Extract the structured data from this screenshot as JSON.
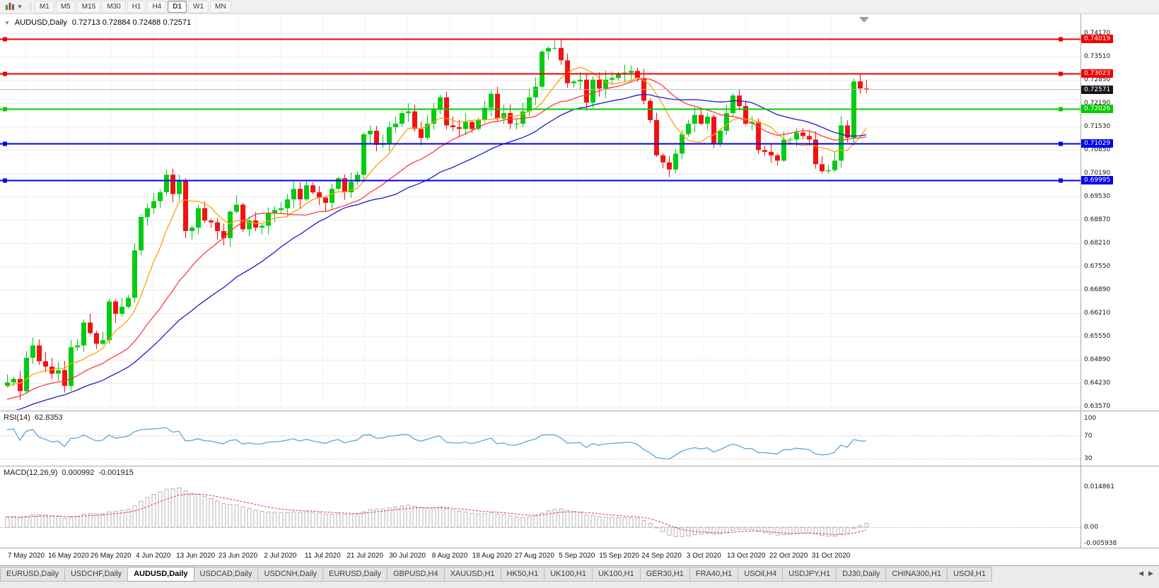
{
  "toolbar": {
    "timeframes": [
      "M1",
      "M5",
      "M15",
      "M30",
      "H1",
      "H4",
      "D1",
      "W1",
      "MN"
    ],
    "active_timeframe": "D1"
  },
  "chart": {
    "title": "AUDUSD,Daily",
    "ohlc": "0.72713 0.72884 0.72488 0.72571",
    "current_price": "0.72571",
    "price_axis": [
      "0.74170",
      "0.73510",
      "0.72850",
      "0.72190",
      "0.71530",
      "0.70850",
      "0.70190",
      "0.69530",
      "0.68870",
      "0.68210",
      "0.67550",
      "0.66890",
      "0.66210",
      "0.65550",
      "0.64890",
      "0.64230",
      "0.63570"
    ],
    "date_axis": [
      "7 May 2020",
      "16 May 2020",
      "26 May 2020",
      "4 Jun 2020",
      "13 Jun 2020",
      "23 Jun 2020",
      "2 Jul 2020",
      "11 Jul 2020",
      "21 Jul 2020",
      "30 Jul 2020",
      "8 Aug 2020",
      "18 Aug 2020",
      "27 Aug 2020",
      "5 Sep 2020",
      "15 Sep 2020",
      "24 Sep 2020",
      "3 Oct 2020",
      "13 Oct 2020",
      "22 Oct 2020",
      "31 Oct 2020"
    ],
    "levels": [
      {
        "value": 0.74019,
        "label": "0.74019",
        "color": "#f00000",
        "kind": "resistance"
      },
      {
        "value": 0.73023,
        "label": "0.73023",
        "color": "#f00000",
        "kind": "resistance"
      },
      {
        "value": 0.72026,
        "label": "0.72026",
        "color": "#00cc00",
        "kind": "pivot"
      },
      {
        "value": 0.71029,
        "label": "0.71029",
        "color": "#0000f0",
        "kind": "support"
      },
      {
        "value": 0.69995,
        "label": "0.69995",
        "color": "#0000f0",
        "kind": "support"
      }
    ],
    "colors": {
      "bull": "#00cc11",
      "bear": "#f21212",
      "rsi": "#5aa7dd",
      "macd_signal": "#e03636",
      "macd_hist": "#b5b5b5",
      "current_chip": "#15151f"
    }
  },
  "rsi": {
    "label": "RSI(14)",
    "value": "62.8353",
    "axis": [
      "100",
      "70",
      "30"
    ],
    "levels": [
      70,
      30
    ]
  },
  "macd": {
    "label": "MACD(12,26,9)",
    "value_main": "0.000992",
    "value_signal": "-0.001915",
    "axis": [
      "0.014861",
      "0.00",
      "-0.005938"
    ]
  },
  "tabs": [
    "EURUSD,Daily",
    "USDCHF,Daily",
    "AUDUSD,Daily",
    "USDCAD,Daily",
    "USDCNH,Daily",
    "EURUSD,Daily",
    "GBPUSD,H4",
    "XAUUSD,H1",
    "HK50,H1",
    "UK100,H1",
    "UK100,H1",
    "GER30,H1",
    "FRA40,H1",
    "USOil,H4",
    "USDJPY,H1",
    "DJ30,Daily",
    "CHINA300,H1",
    "USOil,H1"
  ],
  "active_tab_index": 2,
  "tab_scroll": {
    "left": "◀",
    "right": "▶"
  },
  "chart_data": {
    "type": "candlestick",
    "symbol": "AUDUSD",
    "period": "Daily",
    "title": "AUDUSD,Daily",
    "ohlc_display": {
      "open": "0.72713",
      "high": "0.72884",
      "low": "0.72488",
      "close": "0.72571"
    },
    "ylim": [
      0.6357,
      0.7417
    ],
    "x_axis_ticks": [
      "7 May 2020",
      "16 May 2020",
      "26 May 2020",
      "4 Jun 2020",
      "13 Jun 2020",
      "23 Jun 2020",
      "2 Jul 2020",
      "11 Jul 2020",
      "21 Jul 2020",
      "30 Jul 2020",
      "8 Aug 2020",
      "18 Aug 2020",
      "27 Aug 2020",
      "5 Sep 2020",
      "15 Sep 2020",
      "24 Sep 2020",
      "3 Oct 2020",
      "13 Oct 2020",
      "22 Oct 2020",
      "31 Oct 2020"
    ],
    "closes": [
      0.6425,
      0.6435,
      0.64,
      0.6495,
      0.653,
      0.6485,
      0.647,
      0.645,
      0.646,
      0.6415,
      0.6525,
      0.653,
      0.6595,
      0.6565,
      0.6535,
      0.6545,
      0.6655,
      0.662,
      0.664,
      0.6665,
      0.68,
      0.6895,
      0.692,
      0.694,
      0.6965,
      0.7015,
      0.696,
      0.7,
      0.6855,
      0.6865,
      0.692,
      0.6885,
      0.688,
      0.6855,
      0.6835,
      0.691,
      0.693,
      0.686,
      0.6885,
      0.6865,
      0.687,
      0.6905,
      0.6915,
      0.692,
      0.6945,
      0.6975,
      0.6945,
      0.6985,
      0.6965,
      0.695,
      0.6935,
      0.6975,
      0.7005,
      0.6965,
      0.6995,
      0.7015,
      0.713,
      0.714,
      0.71,
      0.7105,
      0.715,
      0.716,
      0.719,
      0.7195,
      0.7145,
      0.712,
      0.716,
      0.72,
      0.7235,
      0.7155,
      0.715,
      0.7145,
      0.7165,
      0.7145,
      0.717,
      0.7205,
      0.7245,
      0.7175,
      0.719,
      0.716,
      0.716,
      0.7195,
      0.7235,
      0.7265,
      0.7365,
      0.7375,
      0.7375,
      0.734,
      0.7275,
      0.728,
      0.7285,
      0.722,
      0.7285,
      0.726,
      0.7285,
      0.729,
      0.73,
      0.7305,
      0.731,
      0.729,
      0.7225,
      0.717,
      0.707,
      0.705,
      0.703,
      0.7075,
      0.713,
      0.716,
      0.7185,
      0.716,
      0.718,
      0.7105,
      0.714,
      0.719,
      0.724,
      0.721,
      0.716,
      0.7165,
      0.7085,
      0.708,
      0.707,
      0.7055,
      0.7115,
      0.7115,
      0.7135,
      0.7125,
      0.7115,
      0.7045,
      0.7025,
      0.7028,
      0.7055,
      0.7155,
      0.712,
      0.728,
      0.726,
      0.7257
    ],
    "moving_averages": [
      {
        "period": 8,
        "color": "#ffa200"
      },
      {
        "period": 20,
        "color": "#ff3b3b"
      },
      {
        "period": 34,
        "color": "#1a1acc"
      }
    ],
    "horizontal_levels": [
      0.74019,
      0.73023,
      0.72026,
      0.71029,
      0.69995
    ],
    "indicators": {
      "rsi": {
        "period": 14,
        "current": 62.8353,
        "guide_levels": [
          70,
          30
        ],
        "axis_labels": [
          100,
          70,
          30
        ]
      },
      "macd": {
        "fast": 12,
        "slow": 26,
        "signal": 9,
        "current_main": 0.000992,
        "current_signal": -0.001915,
        "axis_max": 0.014861,
        "axis_min": -0.005938
      }
    }
  }
}
